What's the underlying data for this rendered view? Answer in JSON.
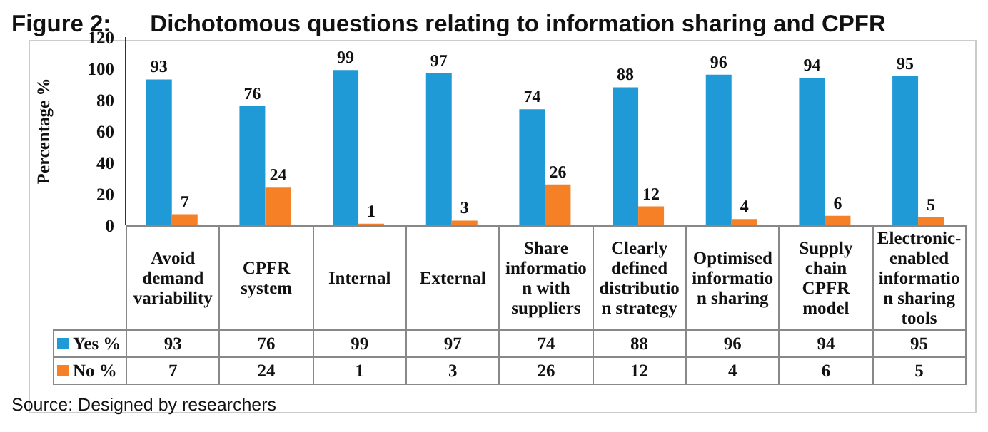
{
  "chart_data": {
    "type": "bar",
    "title": "Figure 2:      Dichotomous questions relating to information sharing and CPFR",
    "ylabel": "Percentage %",
    "categories": [
      "Avoid demand variability",
      "CPFR system",
      "Internal",
      "External",
      "Share information with suppliers",
      "Clearly defined distribution strategy",
      "Optimised information sharing",
      "Supply chain CPFR model",
      "Electronic-enabled information sharing tools"
    ],
    "series": [
      {
        "name": "Yes %",
        "color": "#1f9ad6",
        "values": [
          93,
          76,
          99,
          97,
          74,
          88,
          96,
          94,
          95
        ]
      },
      {
        "name": "No %",
        "color": "#f58025",
        "values": [
          7,
          24,
          1,
          3,
          26,
          12,
          4,
          6,
          5
        ]
      }
    ],
    "ylim": [
      0,
      120
    ],
    "yticks": [
      0,
      20,
      40,
      60,
      80,
      100,
      120
    ],
    "legend": "bottom",
    "data_labels": true,
    "annotations": [
      "Source: Designed by researchers",
      "93",
      "76",
      "99",
      "97",
      "74",
      "88",
      "96",
      "94",
      "95",
      "7",
      "24",
      "1",
      "3",
      "26",
      "12",
      "4",
      "6",
      "5"
    ]
  }
}
